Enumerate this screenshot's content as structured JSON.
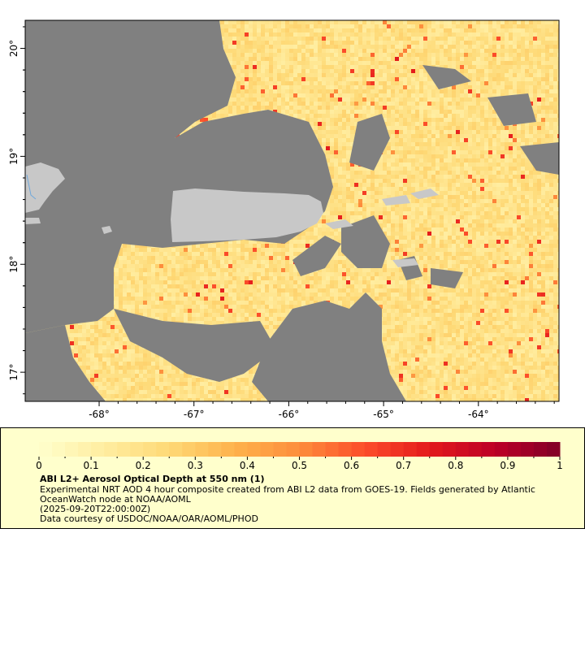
{
  "map": {
    "lon_ticks": [
      "-68°",
      "-67°",
      "-66°",
      "-65°",
      "-64°"
    ],
    "lon_values": [
      -68,
      -67,
      -66,
      -65,
      -64
    ],
    "lat_ticks": [
      "20°",
      "19°",
      "18°",
      "17°"
    ],
    "lat_values": [
      20,
      19,
      18,
      17
    ],
    "lon_range": [
      -68.78,
      -63.15
    ],
    "lat_range": [
      16.73,
      20.26
    ],
    "colors": {
      "cloud": "#808080",
      "land": "#c8c8c8",
      "river": "#6fa8dc"
    }
  },
  "legend": {
    "colorbar_ticks": [
      "0",
      "0.1",
      "0.2",
      "0.3",
      "0.4",
      "0.5",
      "0.6",
      "0.7",
      "0.8",
      "0.9",
      "1"
    ],
    "range": [
      0,
      1
    ],
    "colormap": [
      "#ffffcc",
      "#ffeda0",
      "#fed976",
      "#feb24c",
      "#fd8d3c",
      "#fc4e2a",
      "#e31a1c",
      "#bd0026",
      "#800026"
    ],
    "title": "ABI L2+ Aerosol Optical Depth at 550 nm (1)",
    "description": "Experimental NRT AOD 4 hour composite created from ABI L2 data from GOES-19. Fields generated by Atlantic OceanWatch node at NOAA/AOML",
    "time": "(2025-09-20T22:00:00Z)",
    "credit": "Data courtesy of USDOC/NOAA/OAR/AOML/PHOD"
  }
}
